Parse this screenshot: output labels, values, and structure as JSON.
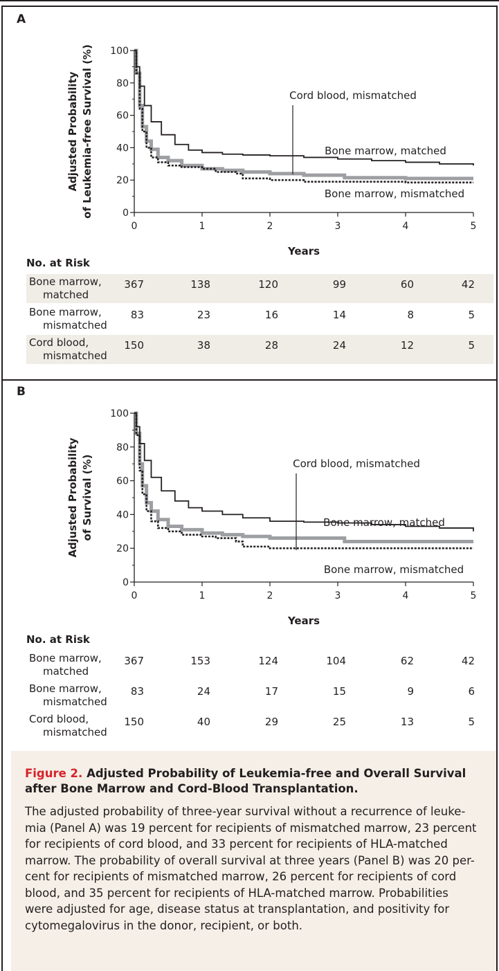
{
  "caption": {
    "figure_label": "Figure 2.",
    "title": "Adjusted Probability of Leukemia-free and Overall Survival after Bone Marrow and Cord-Blood Transplantation.",
    "body_lines": [
      "The adjusted probability of three-year survival without a recurrence of leuke-",
      "mia (Panel A) was 19 percent for recipients of mismatched marrow, 23 percent",
      "for recipients of cord blood, and 33 percent for recipients of HLA-matched",
      "marrow. The probability of overall survival at three years (Panel B) was 20 per-",
      "cent for recipients of mismatched marrow, 26 percent for recipients of cord",
      "blood, and 35 percent for recipients of HLA-matched marrow. Probabilities",
      "were adjusted for age, disease status at transplantation, and positivity for",
      "cytomegalovirus in the donor, recipient, or both."
    ]
  },
  "chart_data": [
    {
      "type": "line",
      "panel": "A",
      "ylabel_lines": [
        "Adjusted Probability",
        "of Leukemia-free Survival (%)"
      ],
      "xlabel": "Years",
      "xlim": [
        0,
        5
      ],
      "ylim": [
        0,
        100
      ],
      "xticks": [
        "0",
        "1",
        "2",
        "3",
        "4",
        "5"
      ],
      "yticks": [
        "0",
        "20",
        "40",
        "60",
        "80",
        "100"
      ],
      "series": [
        {
          "name": "Bone marrow, matched",
          "color": "#231f20",
          "style": "solid-thin",
          "x": [
            0,
            0.03,
            0.08,
            0.15,
            0.25,
            0.4,
            0.6,
            0.8,
            1.0,
            1.3,
            1.6,
            2.0,
            2.5,
            3.0,
            3.5,
            4.0,
            4.5,
            5.0
          ],
          "y": [
            100,
            90,
            78,
            66,
            56,
            48,
            42,
            38.5,
            37,
            36,
            35.5,
            35,
            34,
            33,
            32,
            31,
            30,
            29
          ]
        },
        {
          "name": "Cord blood, mismatched",
          "color": "#9d9fa2",
          "style": "solid-thick",
          "x": [
            0,
            0.03,
            0.08,
            0.12,
            0.18,
            0.25,
            0.35,
            0.5,
            0.7,
            1.0,
            1.3,
            1.6,
            2.0,
            2.5,
            3.0,
            3.1,
            3.5,
            4.0,
            5.0
          ],
          "y": [
            100,
            86,
            66,
            53,
            44,
            39,
            34,
            32,
            29,
            27,
            26,
            25,
            24,
            23,
            23,
            21.5,
            21.5,
            21,
            21
          ]
        },
        {
          "name": "Bone marrow, mismatched",
          "color": "#231f20",
          "style": "dotted",
          "x": [
            0,
            0.03,
            0.08,
            0.12,
            0.18,
            0.25,
            0.35,
            0.5,
            0.7,
            1.0,
            1.2,
            1.5,
            1.6,
            2.0,
            2.5,
            3.0,
            4.0,
            5.0
          ],
          "y": [
            100,
            86,
            64,
            50,
            40,
            34,
            31,
            29,
            28,
            27,
            25,
            24,
            21,
            20,
            19,
            19,
            18.5,
            18.5
          ]
        }
      ],
      "annotations": [
        "Cord blood, mismatched",
        "Bone marrow, matched",
        "Bone marrow, mismatched"
      ],
      "risk_table": {
        "title": "No. at Risk",
        "rows": [
          {
            "label_line1": "Bone marrow,",
            "label_line2": "matched",
            "values": [
              "367",
              "138",
              "120",
              "99",
              "60",
              "42"
            ]
          },
          {
            "label_line1": "Bone marrow,",
            "label_line2": "mismatched",
            "values": [
              "83",
              "23",
              "16",
              "14",
              "8",
              "5"
            ]
          },
          {
            "label_line1": "Cord blood,",
            "label_line2": "mismatched",
            "values": [
              "150",
              "38",
              "28",
              "24",
              "12",
              "5"
            ]
          }
        ]
      }
    },
    {
      "type": "line",
      "panel": "B",
      "ylabel_lines": [
        "Adjusted Probability",
        "of Survival (%)"
      ],
      "xlabel": "Years",
      "xlim": [
        0,
        5
      ],
      "ylim": [
        0,
        100
      ],
      "xticks": [
        "0",
        "1",
        "2",
        "3",
        "4",
        "5"
      ],
      "yticks": [
        "0",
        "20",
        "40",
        "60",
        "80",
        "100"
      ],
      "series": [
        {
          "name": "Bone marrow, matched",
          "color": "#231f20",
          "style": "solid-thin",
          "x": [
            0,
            0.03,
            0.08,
            0.15,
            0.25,
            0.4,
            0.6,
            0.8,
            1.0,
            1.3,
            1.6,
            2.0,
            2.5,
            3.0,
            3.5,
            4.0,
            4.5,
            5.0
          ],
          "y": [
            100,
            92,
            82,
            72,
            62,
            54,
            48,
            44,
            42,
            40,
            38,
            36,
            35.5,
            35,
            34,
            33,
            32,
            30
          ]
        },
        {
          "name": "Cord blood, mismatched",
          "color": "#9d9fa2",
          "style": "solid-thick",
          "x": [
            0,
            0.03,
            0.08,
            0.12,
            0.18,
            0.25,
            0.35,
            0.5,
            0.7,
            1.0,
            1.3,
            1.6,
            2.0,
            2.5,
            3.0,
            3.1,
            3.5,
            4.0,
            5.0
          ],
          "y": [
            100,
            88,
            70,
            57,
            47,
            42,
            37,
            33,
            31,
            29,
            28,
            27,
            26,
            26,
            26,
            24,
            24,
            24,
            24
          ]
        },
        {
          "name": "Bone marrow, mismatched",
          "color": "#231f20",
          "style": "dotted",
          "x": [
            0,
            0.03,
            0.08,
            0.12,
            0.18,
            0.25,
            0.35,
            0.5,
            0.7,
            1.0,
            1.2,
            1.5,
            1.6,
            2.0,
            2.5,
            3.0,
            4.0,
            5.0
          ],
          "y": [
            100,
            87,
            66,
            52,
            42,
            36,
            32,
            30,
            28,
            27,
            26,
            24,
            21,
            20,
            20,
            20,
            20,
            20
          ]
        }
      ],
      "annotations": [
        "Cord blood, mismatched",
        "Bone marrow, matched",
        "Bone marrow, mismatched"
      ],
      "risk_table": {
        "title": "No. at Risk",
        "rows": [
          {
            "label_line1": "Bone marrow,",
            "label_line2": "matched",
            "values": [
              "367",
              "153",
              "124",
              "104",
              "62",
              "42"
            ]
          },
          {
            "label_line1": "Bone marrow,",
            "label_line2": "mismatched",
            "values": [
              "83",
              "24",
              "17",
              "15",
              "9",
              "6"
            ]
          },
          {
            "label_line1": "Cord blood,",
            "label_line2": "mismatched",
            "values": [
              "150",
              "40",
              "29",
              "25",
              "13",
              "5"
            ]
          }
        ]
      }
    }
  ]
}
